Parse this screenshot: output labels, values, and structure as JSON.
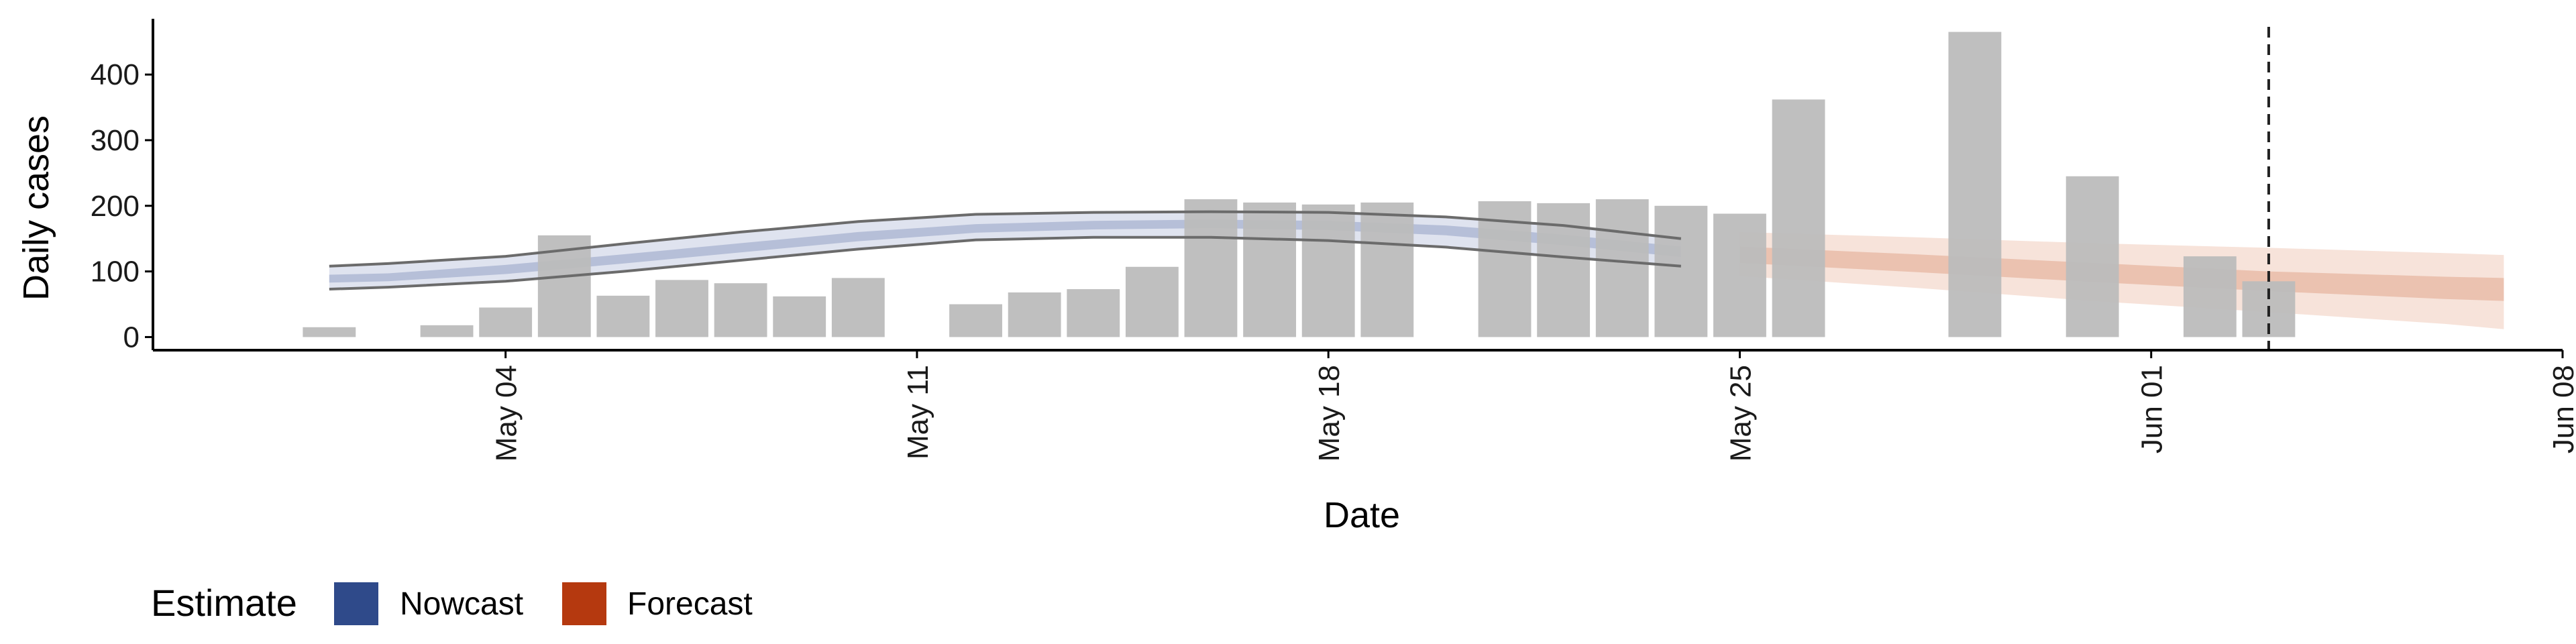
{
  "chart_data": {
    "type": "bar",
    "xlabel": "Date",
    "ylabel": "Daily cases",
    "x_tick_labels": [
      "May 04",
      "May 11",
      "May 18",
      "May 25",
      "Jun 01",
      "Jun 08"
    ],
    "y_ticks": [
      0,
      100,
      200,
      300,
      400
    ],
    "ylim": [
      -20,
      485
    ],
    "xlim": [
      "2020-04-28",
      "2020-06-08"
    ],
    "grid": false,
    "observed_cases": [
      {
        "date": "2020-05-01",
        "value": 15
      },
      {
        "date": "2020-05-03",
        "value": 18
      },
      {
        "date": "2020-05-04",
        "value": 45
      },
      {
        "date": "2020-05-05",
        "value": 155
      },
      {
        "date": "2020-05-06",
        "value": 63
      },
      {
        "date": "2020-05-07",
        "value": 87
      },
      {
        "date": "2020-05-08",
        "value": 82
      },
      {
        "date": "2020-05-09",
        "value": 62
      },
      {
        "date": "2020-05-10",
        "value": 90
      },
      {
        "date": "2020-05-12",
        "value": 50
      },
      {
        "date": "2020-05-13",
        "value": 68
      },
      {
        "date": "2020-05-14",
        "value": 73
      },
      {
        "date": "2020-05-15",
        "value": 107
      },
      {
        "date": "2020-05-16",
        "value": 210
      },
      {
        "date": "2020-05-17",
        "value": 205
      },
      {
        "date": "2020-05-18",
        "value": 202
      },
      {
        "date": "2020-05-19",
        "value": 205
      },
      {
        "date": "2020-05-21",
        "value": 207
      },
      {
        "date": "2020-05-22",
        "value": 204
      },
      {
        "date": "2020-05-23",
        "value": 210
      },
      {
        "date": "2020-05-24",
        "value": 200
      },
      {
        "date": "2020-05-25",
        "value": 188
      },
      {
        "date": "2020-05-26",
        "value": 362
      },
      {
        "date": "2020-05-29",
        "value": 465
      },
      {
        "date": "2020-05-31",
        "value": 245
      },
      {
        "date": "2020-06-02",
        "value": 123
      },
      {
        "date": "2020-06-03",
        "value": 85
      }
    ],
    "nowcast": {
      "name": "Nowcast",
      "color": "#2f4a8a",
      "points": [
        {
          "date": "2020-05-01",
          "median": 88,
          "lower_50": 83,
          "upper_50": 95,
          "lower_90": 73,
          "upper_90": 108
        },
        {
          "date": "2020-05-02",
          "median": 90,
          "lower_50": 85,
          "upper_50": 97,
          "lower_90": 76,
          "upper_90": 112
        },
        {
          "date": "2020-05-04",
          "median": 102,
          "lower_50": 96,
          "upper_50": 110,
          "lower_90": 85,
          "upper_90": 123
        },
        {
          "date": "2020-05-06",
          "median": 118,
          "lower_50": 112,
          "upper_50": 126,
          "lower_90": 100,
          "upper_90": 142
        },
        {
          "date": "2020-05-08",
          "median": 135,
          "lower_50": 129,
          "upper_50": 143,
          "lower_90": 117,
          "upper_90": 160
        },
        {
          "date": "2020-05-10",
          "median": 152,
          "lower_50": 146,
          "upper_50": 160,
          "lower_90": 134,
          "upper_90": 176
        },
        {
          "date": "2020-05-12",
          "median": 165,
          "lower_50": 159,
          "upper_50": 172,
          "lower_90": 148,
          "upper_90": 187
        },
        {
          "date": "2020-05-14",
          "median": 170,
          "lower_50": 164,
          "upper_50": 177,
          "lower_90": 152,
          "upper_90": 190
        },
        {
          "date": "2020-05-16",
          "median": 172,
          "lower_50": 166,
          "upper_50": 179,
          "lower_90": 152,
          "upper_90": 191
        },
        {
          "date": "2020-05-18",
          "median": 170,
          "lower_50": 163,
          "upper_50": 177,
          "lower_90": 147,
          "upper_90": 190
        },
        {
          "date": "2020-05-20",
          "median": 162,
          "lower_50": 155,
          "upper_50": 170,
          "lower_90": 137,
          "upper_90": 183
        },
        {
          "date": "2020-05-22",
          "median": 148,
          "lower_50": 140,
          "upper_50": 156,
          "lower_90": 122,
          "upper_90": 170
        },
        {
          "date": "2020-05-24",
          "median": 130,
          "lower_50": 122,
          "upper_50": 138,
          "lower_90": 108,
          "upper_90": 150
        }
      ]
    },
    "forecast": {
      "name": "Forecast",
      "color": "#b5390f",
      "points": [
        {
          "date": "2020-05-25",
          "median": 125,
          "lower_50": 113,
          "upper_50": 138,
          "lower_90": 93,
          "upper_90": 160
        },
        {
          "date": "2020-05-28",
          "median": 112,
          "lower_50": 99,
          "upper_50": 126,
          "lower_90": 75,
          "upper_90": 152
        },
        {
          "date": "2020-05-31",
          "median": 98,
          "lower_50": 84,
          "upper_50": 113,
          "lower_90": 55,
          "upper_90": 143
        },
        {
          "date": "2020-06-03",
          "median": 85,
          "lower_50": 70,
          "upper_50": 100,
          "lower_90": 38,
          "upper_90": 136
        },
        {
          "date": "2020-06-06",
          "median": 75,
          "lower_50": 58,
          "upper_50": 92,
          "lower_90": 20,
          "upper_90": 128
        },
        {
          "date": "2020-06-07",
          "median": 72,
          "lower_50": 55,
          "upper_50": 90,
          "lower_90": 12,
          "upper_90": 125
        }
      ]
    },
    "vertical_line_date": "2020-06-03",
    "legend": {
      "position": "bottom-left",
      "title": "Estimate",
      "entries": [
        {
          "label": "Nowcast",
          "color": "#2f4a8a"
        },
        {
          "label": "Forecast",
          "color": "#b5390f"
        }
      ]
    },
    "colors": {
      "bars": "#bcbcbc",
      "nowcast_band_outer": "#dfe3ef",
      "nowcast_band_inner": "#b6bfd8",
      "nowcast_outline": "#6b6b6b",
      "forecast_band_outer": "#f7e3da",
      "forecast_band_inner": "#ebc2b0",
      "vline": "#222222",
      "axis": "#000000"
    }
  }
}
